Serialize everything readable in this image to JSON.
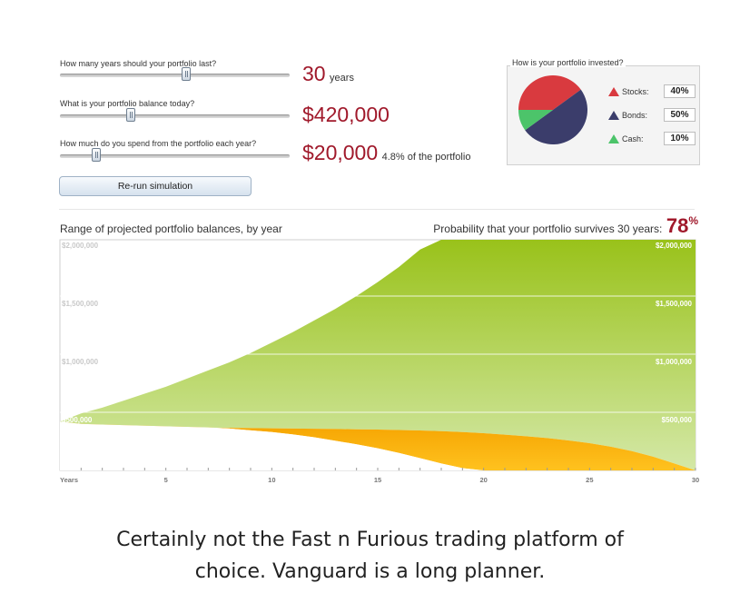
{
  "controls": {
    "years_question": "How many years should your portfolio last?",
    "years_value": "30",
    "years_unit": "years",
    "years_fraction": 0.55,
    "balance_question": "What is your portfolio balance today?",
    "balance_value": "$420,000",
    "balance_fraction": 0.31,
    "spend_question": "How much do you spend from the portfolio each year?",
    "spend_value": "$20,000",
    "spend_note": "4.8% of the portfolio",
    "spend_fraction": 0.16,
    "rerun_label": "Re-run simulation"
  },
  "allocation": {
    "title": "How is your portfolio invested?",
    "rows": [
      {
        "label": "Stocks:",
        "value": "40%",
        "color": "#d93a3f"
      },
      {
        "label": "Bonds:",
        "value": "50%",
        "color": "#3b3d6b"
      },
      {
        "label": "Cash:",
        "value": "10%",
        "color": "#4cc46a"
      }
    ]
  },
  "chart_header": {
    "title": "Range of projected portfolio balances, by year",
    "probability_label": "Probability that your portfolio survives 30 years:",
    "probability_value": "78",
    "probability_unit": "%"
  },
  "chart_data": {
    "type": "area",
    "x": [
      0,
      1,
      2,
      3,
      4,
      5,
      6,
      7,
      8,
      9,
      10,
      11,
      12,
      13,
      14,
      15,
      16,
      17,
      18,
      19,
      20,
      21,
      22,
      23,
      24,
      25,
      26,
      27,
      28,
      29,
      30
    ],
    "xlabel": "Years",
    "x_ticks": [
      "5",
      "10",
      "15",
      "20",
      "25",
      "30"
    ],
    "y_ticks": [
      "$500,000",
      "$1,000,000",
      "$1,500,000",
      "$2,000,000"
    ],
    "xlim": [
      0,
      30
    ],
    "ylim": [
      0,
      2000000
    ],
    "series": [
      {
        "values": [
          420000,
          490000,
          540000,
          600000,
          660000,
          720000,
          790000,
          860000,
          930000,
          1010000,
          1100000,
          1190000,
          1290000,
          1390000,
          1500000,
          1620000,
          1750000,
          1900000,
          2000000,
          2000000,
          2000000,
          2000000,
          2000000,
          2000000,
          2000000,
          2000000,
          2000000,
          2000000,
          2000000,
          2000000,
          2000000
        ],
        "color": "#8ec21f"
      },
      {
        "values": [
          420000,
          400000,
          395000,
          390000,
          385000,
          380000,
          375000,
          370000,
          360000,
          345000,
          330000,
          310000,
          285000,
          255000,
          225000,
          190000,
          150000,
          105000,
          60000,
          20000,
          0,
          0,
          0,
          0,
          0,
          0,
          0,
          0,
          0,
          0,
          0
        ],
        "color": "#f5a300"
      },
      {
        "values": [
          420000,
          395000,
          385000,
          380000,
          375000,
          372000,
          370000,
          368000,
          366000,
          364000,
          362000,
          360000,
          358000,
          356000,
          354000,
          352000,
          348000,
          344000,
          338000,
          330000,
          320000,
          308000,
          294000,
          278000,
          258000,
          234000,
          204000,
          166000,
          118000,
          60000,
          0
        ],
        "color": "#ffffff"
      }
    ],
    "grid": true
  },
  "caption": {
    "line1": "Certainly not the Fast n Furious trading platform of",
    "line2": "choice. Vanguard is a long planner."
  }
}
